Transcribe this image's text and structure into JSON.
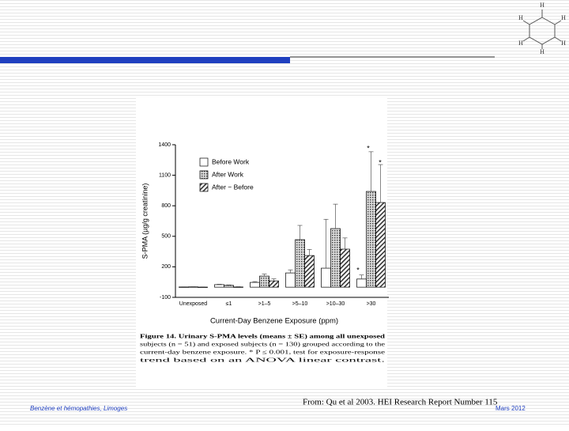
{
  "chart_data": {
    "type": "bar",
    "y_label": "S-PMA (µg/g creatinine)",
    "x_label": "Current-Day Benzene Exposure (ppm)",
    "categories": [
      "Unexposed",
      "≤1",
      ">1–5",
      ">5–10",
      ">10–30",
      ">30"
    ],
    "series": [
      {
        "name": "Before Work",
        "color": "#ffffff",
        "pattern": "none",
        "values": [
          2,
          25,
          47,
          140,
          187,
          80
        ],
        "errors": [
          2,
          4,
          8,
          30,
          480,
          40
        ]
      },
      {
        "name": "After Work",
        "color": "#bbbbbb",
        "pattern": "dots",
        "values": [
          3,
          18,
          109,
          467,
          576,
          941
        ],
        "errors": [
          2,
          4,
          20,
          140,
          240,
          390
        ]
      },
      {
        "name": "After − Before",
        "color": "#ffffff",
        "pattern": "hatch",
        "values": [
          1,
          2,
          62,
          311,
          374,
          832
        ],
        "errors": [
          2,
          3,
          20,
          60,
          110,
          373
        ]
      }
    ],
    "ylim": [
      -100,
      1400
    ],
    "yticks": [
      -100,
      200,
      500,
      800,
      1100,
      1400
    ],
    "annotations": [
      "*",
      "*",
      "*"
    ],
    "caption": [
      "Figure 14. Urinary S-PMA levels (means ± SE) among all unexposed",
      "subjects (n = 51) and exposed subjects (n = 130) grouped according to the",
      "current-day benzene exposure. * P ≤ 0.001, test for exposure-response",
      "trend based on an ANOVA linear contrast."
    ]
  },
  "slide": {
    "footer_left": "Benzène et hémopathies, Limoges",
    "source": "From: Qu et al 2003. HEI Research Report Number 115",
    "date": "Mars 2012",
    "molecule_labels": [
      "H",
      "H",
      "H",
      "H",
      "H",
      "H"
    ]
  }
}
